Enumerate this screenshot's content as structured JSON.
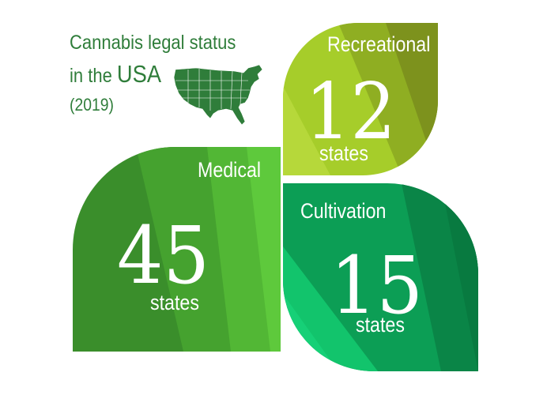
{
  "title": {
    "line1": "Cannabis legal status",
    "line2_prefix": "in the ",
    "line2_emph": "USA",
    "line3": "(2019)"
  },
  "map": {
    "icon": "usa-map-icon",
    "color": "#2f7d3a"
  },
  "categories": [
    {
      "id": "recreational",
      "label": "Recreational",
      "count": "12",
      "unit": "states",
      "colors": [
        "#a9cf2a",
        "#7c8f1c"
      ]
    },
    {
      "id": "medical",
      "label": "Medical",
      "count": "45",
      "unit": "states",
      "colors": [
        "#3b8f2a",
        "#5cc53a"
      ]
    },
    {
      "id": "cultivation",
      "label": "Cultivation",
      "count": "15",
      "unit": "states",
      "colors": [
        "#10c46a",
        "#0a7d44"
      ]
    }
  ]
}
